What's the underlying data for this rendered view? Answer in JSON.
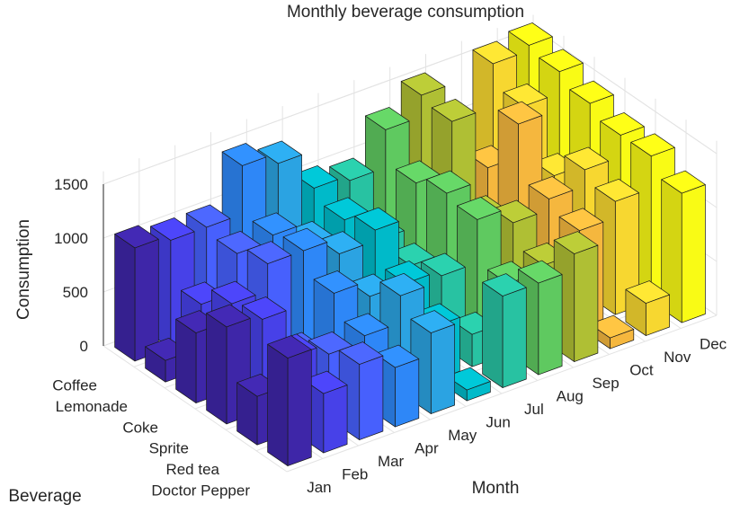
{
  "chart_data": {
    "type": "bar3d",
    "title": "Monthly beverage consumption",
    "xlabel": "Month",
    "ylabel": "Beverage",
    "zlabel": "Consumption",
    "months": [
      "Jan",
      "Feb",
      "Mar",
      "Apr",
      "May",
      "Jun",
      "Jul",
      "Aug",
      "Sep",
      "Oct",
      "Nov",
      "Dec"
    ],
    "beverages": [
      "Coffee",
      "Lemonade",
      "Coke",
      "Sprite",
      "Red tea",
      "Doctor Pepper"
    ],
    "zticks": [
      0,
      500,
      1000,
      1500
    ],
    "zlim": [
      0,
      1500
    ],
    "grid": true,
    "colormap": "parula (by month)",
    "month_colors": [
      "#3e26a8",
      "#4741e8",
      "#4760fd",
      "#2e87f7",
      "#2ba3e2",
      "#00bac9",
      "#28c2a2",
      "#5fc960",
      "#afbf34",
      "#f5b73e",
      "#f7d730",
      "#f9fb15"
    ],
    "series": [
      {
        "month": "Jan",
        "values": [
          1050,
          200,
          650,
          900,
          450,
          1000
        ]
      },
      {
        "month": "Feb",
        "values": [
          1000,
          600,
          800,
          850,
          700,
          550
        ]
      },
      {
        "month": "Mar",
        "values": [
          1000,
          950,
          1050,
          400,
          600,
          700
        ]
      },
      {
        "month": "Apr",
        "values": [
          1450,
          1000,
          1050,
          850,
          650,
          550
        ]
      },
      {
        "month": "May",
        "values": [
          1350,
          800,
          900,
          700,
          900,
          750
        ]
      },
      {
        "month": "Jun",
        "values": [
          1000,
          900,
          1000,
          700,
          500,
          100
        ]
      },
      {
        "month": "Jul",
        "values": [
          950,
          600,
          550,
          650,
          300,
          850
        ]
      },
      {
        "month": "Aug",
        "values": [
          1300,
          1000,
          1100,
          1050,
          650,
          850
        ]
      },
      {
        "month": "Sep",
        "values": [
          1500,
          1450,
          750,
          900,
          700,
          1000
        ]
      },
      {
        "month": "Oct",
        "values": [
          600,
          900,
          1500,
          1000,
          900,
          100
        ]
      },
      {
        "month": "Nov",
        "values": [
          1550,
          1350,
          900,
          1150,
          1050,
          300
        ]
      },
      {
        "month": "Dec",
        "values": [
          1600,
          1550,
          1450,
          1350,
          1350,
          1200
        ]
      }
    ]
  }
}
